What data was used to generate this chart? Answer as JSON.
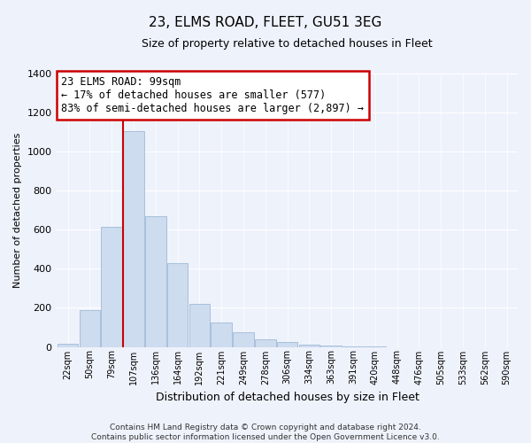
{
  "title": "23, ELMS ROAD, FLEET, GU51 3EG",
  "subtitle": "Size of property relative to detached houses in Fleet",
  "xlabel": "Distribution of detached houses by size in Fleet",
  "ylabel": "Number of detached properties",
  "bar_color": "#cddcee",
  "bar_edge_color": "#a8c0dc",
  "vline_color": "#cc0000",
  "vline_x_index": 3,
  "bin_labels": [
    "22sqm",
    "50sqm",
    "79sqm",
    "107sqm",
    "136sqm",
    "164sqm",
    "192sqm",
    "221sqm",
    "249sqm",
    "278sqm",
    "306sqm",
    "334sqm",
    "363sqm",
    "391sqm",
    "420sqm",
    "448sqm",
    "476sqm",
    "505sqm",
    "533sqm",
    "562sqm",
    "590sqm"
  ],
  "bar_heights": [
    15,
    190,
    615,
    1105,
    670,
    430,
    220,
    125,
    75,
    40,
    25,
    10,
    5,
    2,
    1,
    0,
    0,
    0,
    0,
    0,
    0
  ],
  "ylim": [
    0,
    1400
  ],
  "yticks": [
    0,
    200,
    400,
    600,
    800,
    1000,
    1200,
    1400
  ],
  "annotation_line1": "23 ELMS ROAD: 99sqm",
  "annotation_line2": "← 17% of detached houses are smaller (577)",
  "annotation_line3": "83% of semi-detached houses are larger (2,897) →",
  "annotation_box_color": "#ffffff",
  "annotation_box_edge": "#cc0000",
  "footer_line1": "Contains HM Land Registry data © Crown copyright and database right 2024.",
  "footer_line2": "Contains public sector information licensed under the Open Government Licence v3.0.",
  "background_color": "#eef2fb",
  "grid_color": "#ffffff",
  "title_fontsize": 11,
  "subtitle_fontsize": 9,
  "ylabel_fontsize": 8,
  "xlabel_fontsize": 9
}
